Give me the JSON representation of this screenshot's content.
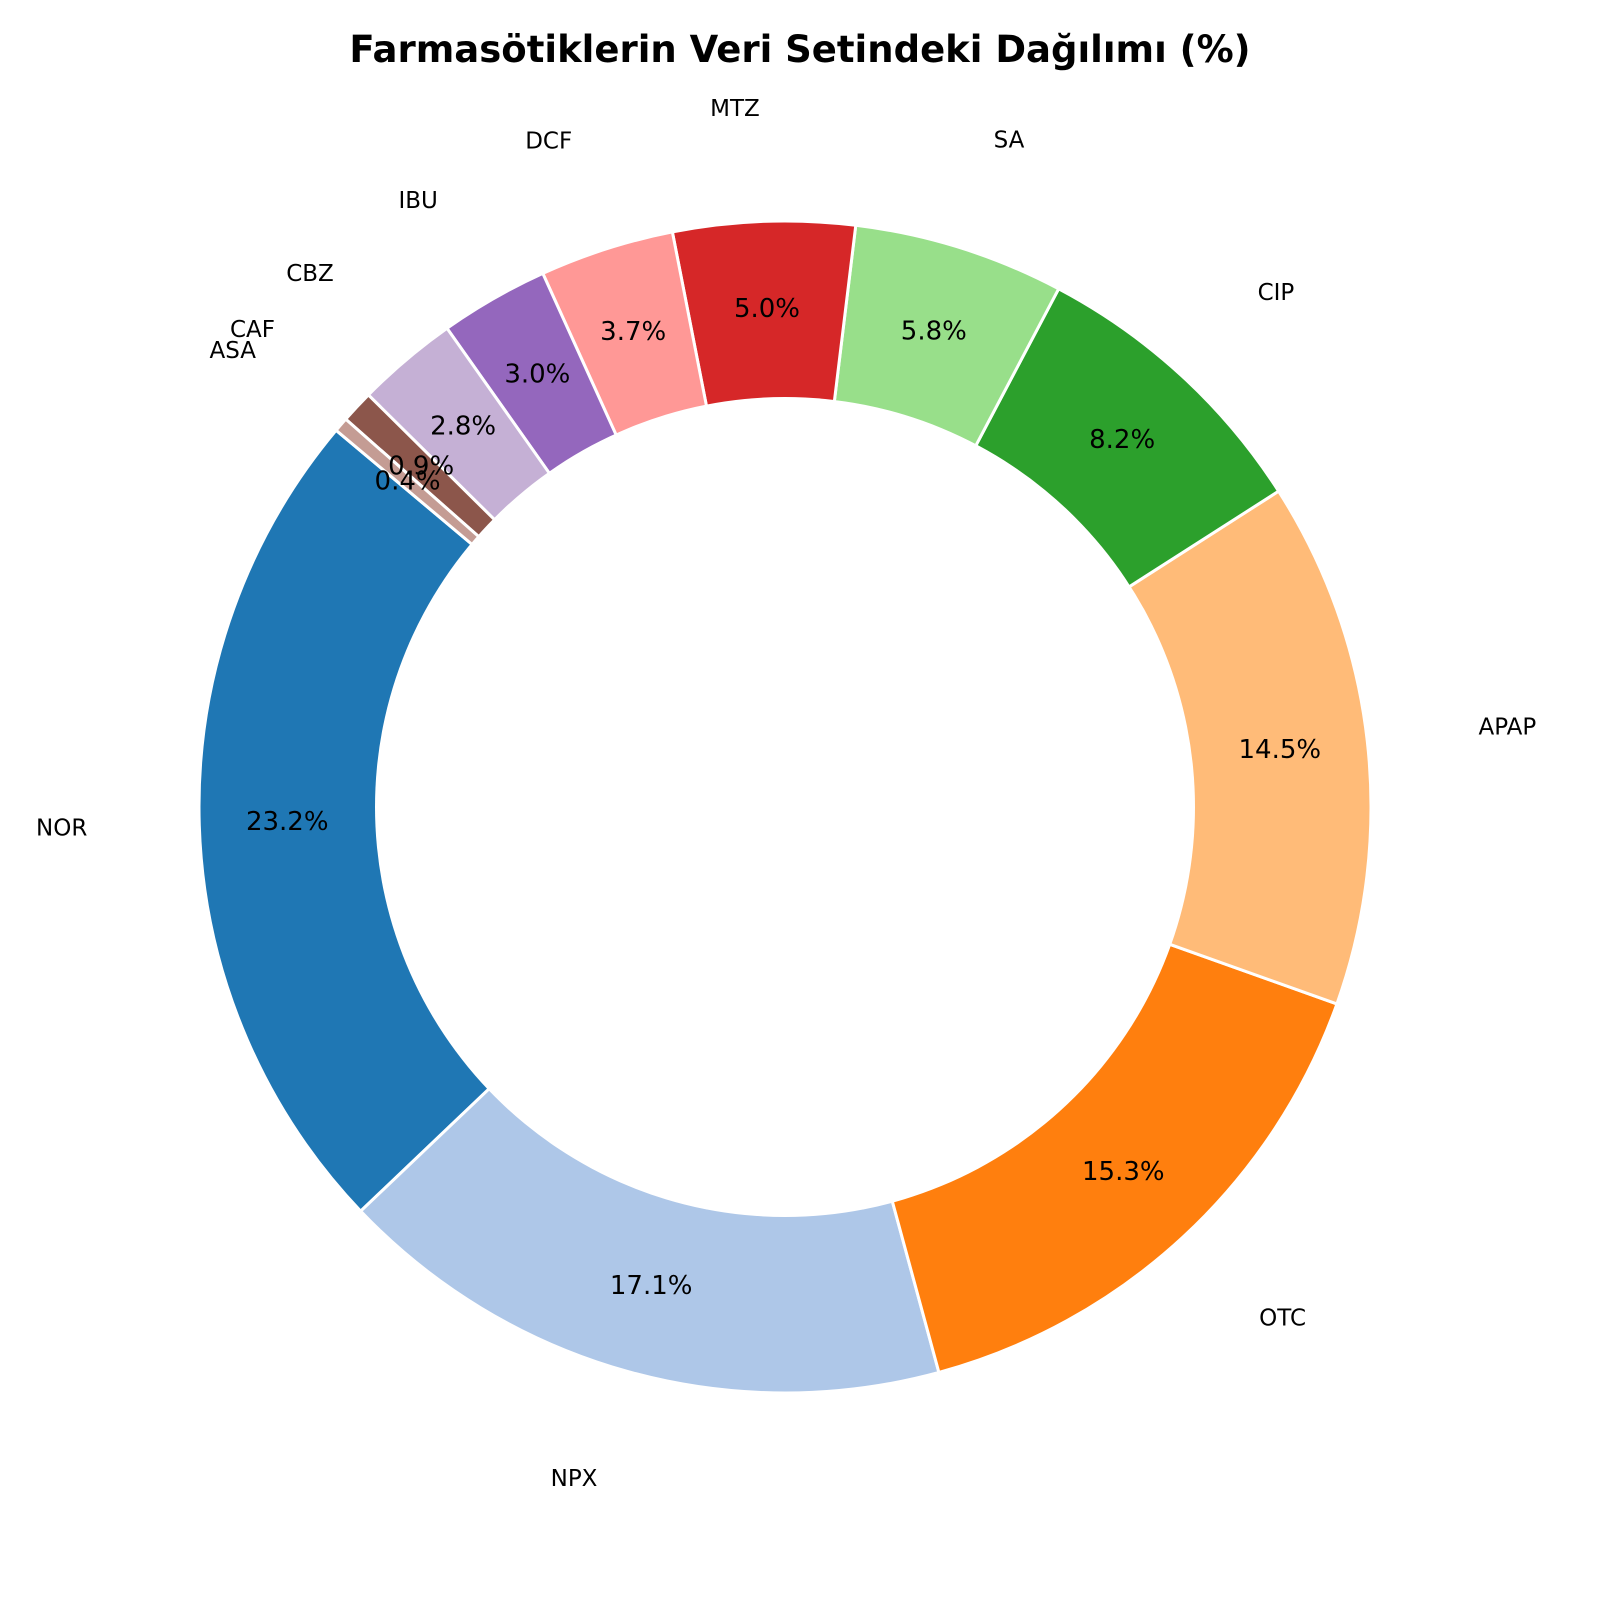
{
  "chart_data": {
    "type": "pie",
    "title": "Farmasötiklerin Veri Setindeki Dağılımı (%)",
    "donut": true,
    "start_angle_deg": 140,
    "direction": "counterclockwise",
    "categories": [
      "NOR",
      "NPX",
      "OTC",
      "APAP",
      "CIP",
      "SA",
      "MTZ",
      "DCF",
      "IBU",
      "CBZ",
      "CAF",
      "ASA"
    ],
    "values": [
      23.2,
      17.1,
      15.3,
      14.5,
      8.2,
      5.8,
      5.0,
      3.7,
      3.0,
      2.8,
      0.9,
      0.4
    ],
    "value_labels": [
      "23.2%",
      "17.1%",
      "15.3%",
      "14.5%",
      "8.2%",
      "5.8%",
      "5.0%",
      "3.7%",
      "3.0%",
      "2.8%",
      "0.9%",
      "0.4%"
    ],
    "colors": [
      "#1f77b4",
      "#aec7e8",
      "#ff7f0e",
      "#ffbb78",
      "#2ca02c",
      "#98df8a",
      "#d62728",
      "#ff9896",
      "#9467bd",
      "#c5b0d5",
      "#8c564b",
      "#c49c94"
    ]
  }
}
